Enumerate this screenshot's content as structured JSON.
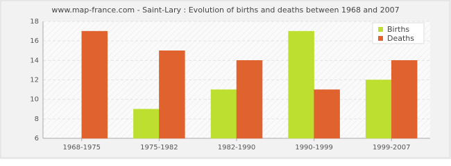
{
  "chart_data": {
    "type": "bar",
    "title": "www.map-france.com - Saint-Lary : Evolution of births and deaths between 1968 and 2007",
    "categories": [
      "1968-1975",
      "1975-1982",
      "1982-1990",
      "1990-1999",
      "1999-2007"
    ],
    "series": [
      {
        "name": "Births",
        "color": "#bde030",
        "values": [
          6,
          9,
          11,
          17,
          12
        ]
      },
      {
        "name": "Deaths",
        "color": "#e0622e",
        "values": [
          17,
          15,
          14,
          11,
          14
        ]
      }
    ],
    "ylim": [
      6,
      18
    ],
    "yticks": [
      6,
      8,
      10,
      12,
      14,
      16,
      18
    ],
    "grid": true,
    "legend": "top-right"
  }
}
